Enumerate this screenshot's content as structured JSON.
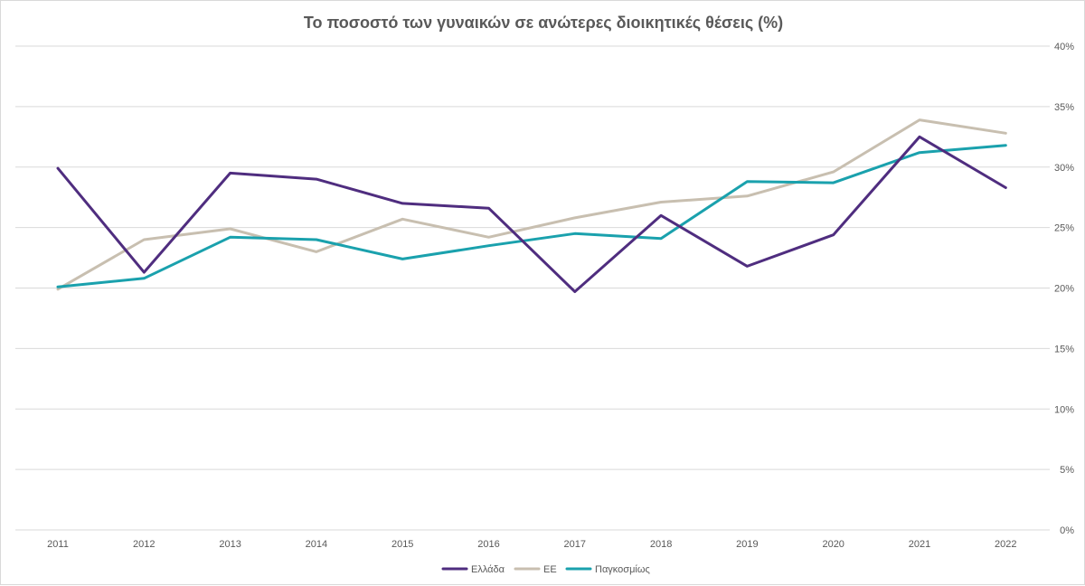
{
  "chart_data": {
    "type": "line",
    "title": "Το ποσοστό των γυναικών σε ανώτερες διοικητικές θέσεις (%)",
    "categories": [
      "2011",
      "2012",
      "2013",
      "2014",
      "2015",
      "2016",
      "2017",
      "2018",
      "2019",
      "2020",
      "2021",
      "2022"
    ],
    "y_axis": {
      "position": "right",
      "min": 0,
      "max": 40,
      "step": 5,
      "tick_labels": [
        "0%",
        "5%",
        "10%",
        "15%",
        "20%",
        "25%",
        "30%",
        "35%",
        "40%"
      ]
    },
    "grid": true,
    "legend_position": "bottom",
    "series": [
      {
        "name": "Ελλάδα",
        "color": "#4f2d7f",
        "values": [
          29.9,
          21.3,
          29.5,
          29.0,
          27.0,
          26.6,
          19.7,
          26.0,
          21.8,
          24.4,
          32.5,
          28.3
        ]
      },
      {
        "name": "ΕΕ",
        "color": "#c8bfb0",
        "values": [
          19.9,
          24.0,
          24.9,
          23.0,
          25.7,
          24.2,
          25.8,
          27.1,
          27.6,
          29.6,
          33.9,
          32.8
        ]
      },
      {
        "name": "Παγκοσμίως",
        "color": "#1aa1ad",
        "values": [
          20.1,
          20.8,
          24.2,
          24.0,
          22.4,
          23.5,
          24.5,
          24.1,
          28.8,
          28.7,
          31.2,
          31.8
        ]
      }
    ]
  }
}
